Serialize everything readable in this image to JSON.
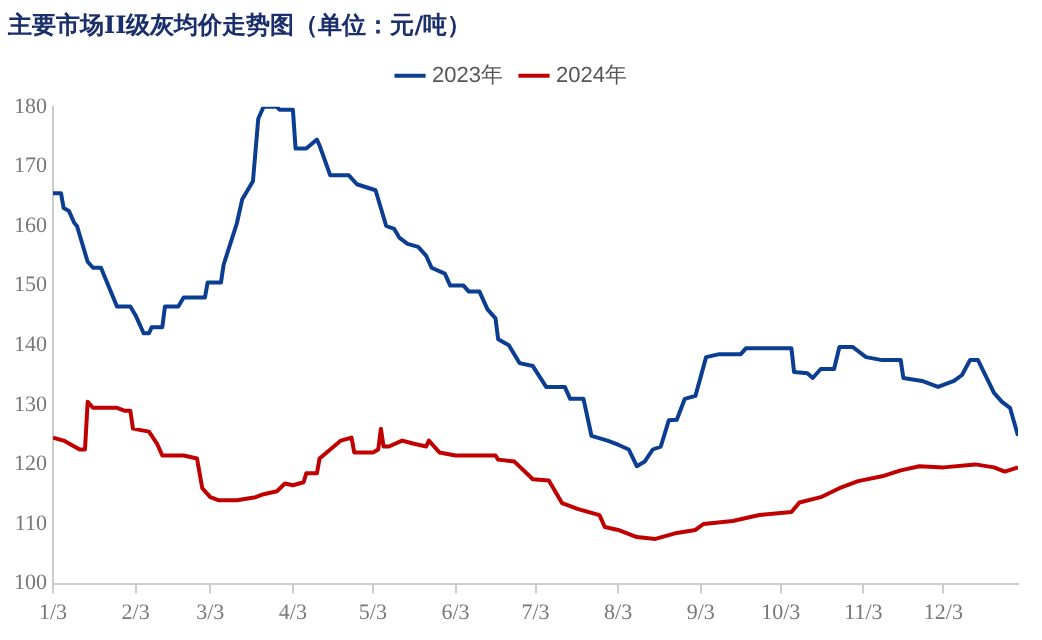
{
  "chart_data": {
    "type": "line",
    "title": "主要市场II级灰均价走势图（单位：元/吨）",
    "xlim": [
      "--01-03",
      "--12-31"
    ],
    "xticks": [
      {
        "value": "--01-03",
        "label": "1/3"
      },
      {
        "value": "--02-03",
        "label": "2/3"
      },
      {
        "value": "--03-03",
        "label": "3/3"
      },
      {
        "value": "--04-03",
        "label": "4/3"
      },
      {
        "value": "--05-03",
        "label": "5/3"
      },
      {
        "value": "--06-03",
        "label": "6/3"
      },
      {
        "value": "--07-03",
        "label": "7/3"
      },
      {
        "value": "--08-03",
        "label": "8/3"
      },
      {
        "value": "--09-03",
        "label": "9/3"
      },
      {
        "value": "--10-03",
        "label": "10/3"
      },
      {
        "value": "--11-03",
        "label": "11/3"
      },
      {
        "value": "--12-03",
        "label": "12/3"
      }
    ],
    "ylim": [
      100,
      180
    ],
    "yticks": [
      100,
      110,
      120,
      130,
      140,
      150,
      160,
      170,
      180
    ],
    "grid": false,
    "legend": "top",
    "marker": "none",
    "line_style": "solid",
    "series": [
      {
        "name": "2023年",
        "color": "#0b3d91",
        "x": [
          "--01-03",
          "--01-06",
          "--01-07",
          "--01-09",
          "--01-11",
          "--01-12",
          "--01-16",
          "--01-18",
          "--01-21",
          "--01-27",
          "--02-01",
          "--02-03",
          "--02-06",
          "--02-08",
          "--02-09",
          "--02-13",
          "--02-14",
          "--02-19",
          "--02-21",
          "--03-01",
          "--03-02",
          "--03-07",
          "--03-08",
          "--03-13",
          "--03-15",
          "--03-19",
          "--03-21",
          "--03-23",
          "--03-28",
          "--03-29",
          "--04-03",
          "--04-04",
          "--04-08",
          "--04-12",
          "--04-13",
          "--04-17",
          "--04-24",
          "--04-27",
          "--05-04",
          "--05-08",
          "--05-11",
          "--05-13",
          "--05-16",
          "--05-20",
          "--05-23",
          "--05-25",
          "--05-30",
          "--06-01",
          "--06-06",
          "--06-08",
          "--06-12",
          "--06-15",
          "--06-18",
          "--06-19",
          "--06-23",
          "--06-27",
          "--07-02",
          "--07-07",
          "--07-14",
          "--07-16",
          "--07-21",
          "--07-24",
          "--07-30",
          "--08-03",
          "--08-07",
          "--08-10",
          "--08-13",
          "--08-16",
          "--08-19",
          "--08-22",
          "--08-25",
          "--08-28",
          "--09-01",
          "--09-05",
          "--09-10",
          "--09-18",
          "--09-20",
          "--10-07",
          "--10-08",
          "--10-13",
          "--10-15",
          "--10-18",
          "--10-23",
          "--10-25",
          "--10-30",
          "--11-04",
          "--11-10",
          "--11-17",
          "--11-18",
          "--11-25",
          "--12-01",
          "--12-07",
          "--12-10",
          "--12-13",
          "--12-16",
          "--12-22",
          "--12-25",
          "--12-28",
          "--12-31"
        ],
        "values": [
          165.5,
          165.5,
          163,
          162.5,
          160.5,
          160,
          154,
          153,
          153,
          146.5,
          146.5,
          145,
          142,
          142,
          143,
          143,
          146.5,
          146.5,
          148,
          148,
          150.5,
          150.5,
          153.5,
          160.5,
          164.5,
          167.5,
          178,
          180,
          180,
          179.5,
          179.5,
          173,
          173,
          174.5,
          173.5,
          168.5,
          168.5,
          167,
          166,
          160,
          159.5,
          158,
          157,
          156.5,
          155,
          153,
          152,
          150,
          150,
          149,
          149,
          146,
          144.5,
          141,
          140,
          137,
          136.5,
          133,
          133,
          131,
          131,
          124.8,
          124,
          123.3,
          122.5,
          119.7,
          120.5,
          122.5,
          123,
          127.4,
          127.5,
          131,
          131.5,
          138,
          138.5,
          138.5,
          139.5,
          139.5,
          135.5,
          135.3,
          134.5,
          136,
          136,
          139.7,
          139.7,
          138,
          137.5,
          137.5,
          134.5,
          134,
          133,
          134,
          135,
          137.5,
          137.5,
          132,
          130.5,
          129.5,
          124.8
        ]
      },
      {
        "name": "2024年",
        "color": "#c00000",
        "x": [
          "--01-03",
          "--01-07",
          "--01-11",
          "--01-13",
          "--01-15",
          "--01-16",
          "--01-18",
          "--01-27",
          "--01-30",
          "--02-01",
          "--02-02",
          "--02-08",
          "--02-11",
          "--02-13",
          "--02-21",
          "--02-26",
          "--02-28",
          "--03-03",
          "--03-06",
          "--03-13",
          "--03-20",
          "--03-23",
          "--03-28",
          "--03-31",
          "--04-03",
          "--04-07",
          "--04-08",
          "--04-12",
          "--04-13",
          "--04-17",
          "--04-21",
          "--04-25",
          "--04-26",
          "--05-03",
          "--05-05",
          "--05-06",
          "--05-07",
          "--05-09",
          "--05-14",
          "--05-18",
          "--05-23",
          "--05-24",
          "--05-28",
          "--06-03",
          "--06-18",
          "--06-19",
          "--06-25",
          "--07-02",
          "--07-08",
          "--07-13",
          "--07-19",
          "--07-27",
          "--07-29",
          "--08-03",
          "--08-10",
          "--08-17",
          "--08-25",
          "--09-01",
          "--09-04",
          "--09-15",
          "--09-25",
          "--10-07",
          "--10-10",
          "--10-18",
          "--10-25",
          "--11-01",
          "--11-10",
          "--11-17",
          "--11-24",
          "--12-03",
          "--12-15",
          "--12-22",
          "--12-26",
          "--12-31"
        ],
        "values": [
          124.5,
          124,
          123,
          122.5,
          122.5,
          130.5,
          129.5,
          129.5,
          129,
          129,
          126,
          125.5,
          123.5,
          121.5,
          121.5,
          121,
          116,
          114.5,
          114,
          114,
          114.5,
          115,
          115.5,
          116.8,
          116.5,
          117,
          118.5,
          118.5,
          121,
          122.5,
          124,
          124.5,
          122,
          122,
          122.5,
          126,
          123,
          123,
          124,
          123.5,
          123,
          124,
          122,
          121.5,
          121.5,
          120.8,
          120.5,
          117.5,
          117.3,
          113.5,
          112.5,
          111.5,
          109.5,
          109,
          107.8,
          107.5,
          108.5,
          109,
          110,
          110.5,
          111.5,
          112,
          113.6,
          114.5,
          116,
          117.2,
          118,
          119,
          119.7,
          119.5,
          120,
          119.5,
          118.8,
          119.5
        ]
      }
    ]
  }
}
